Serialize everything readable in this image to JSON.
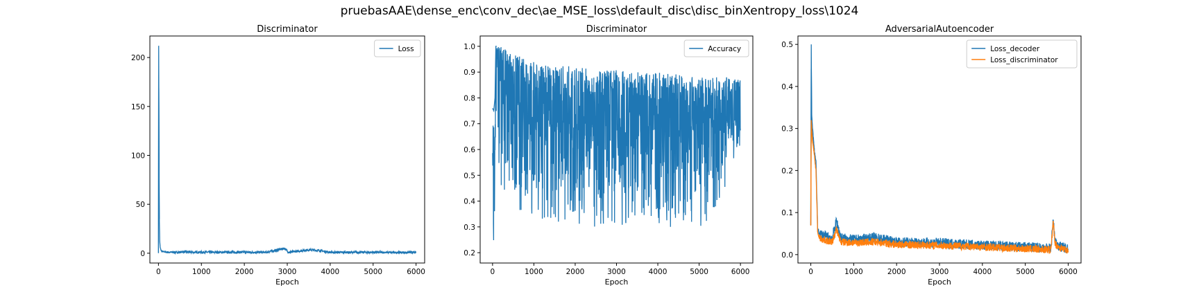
{
  "figure": {
    "suptitle": "pruebasAAE\\dense_enc\\conv_dec\\ae_MSE_loss\\default_disc\\disc_binXentropy_loss\\1024"
  },
  "colors": {
    "blue": "#1f77b4",
    "orange": "#ff7f0e"
  },
  "chart_data": [
    {
      "type": "line",
      "title": "Discriminator",
      "xlabel": "Epoch",
      "ylabel": "",
      "xlim": [
        -200,
        6200
      ],
      "ylim": [
        -10,
        222
      ],
      "xticks": [
        0,
        1000,
        2000,
        3000,
        4000,
        5000,
        6000
      ],
      "yticks": [
        0,
        50,
        100,
        150,
        200
      ],
      "legend_position": "top-right",
      "series": [
        {
          "name": "Loss",
          "color": "#1f77b4",
          "x": [
            0,
            5,
            10,
            15,
            20,
            30,
            40,
            60,
            80,
            120,
            200,
            400,
            600,
            800,
            1000,
            1500,
            2000,
            2500,
            2950,
            3000,
            3050,
            3500,
            3700,
            4000,
            4500,
            5000,
            5500,
            6000
          ],
          "y": [
            0.5,
            212,
            150,
            85,
            35,
            12,
            6,
            3,
            2,
            1.5,
            1,
            0.8,
            1.5,
            0.9,
            1,
            0.9,
            1,
            0.8,
            5,
            2,
            1,
            3.5,
            3,
            1,
            0.8,
            0.9,
            0.7,
            0.8
          ],
          "noise_amplitude": 1.2
        }
      ]
    },
    {
      "type": "line",
      "title": "Discriminator",
      "xlabel": "Epoch",
      "ylabel": "",
      "xlim": [
        -300,
        6300
      ],
      "ylim": [
        0.16,
        1.04
      ],
      "xticks": [
        0,
        1000,
        2000,
        3000,
        4000,
        5000,
        6000
      ],
      "yticks": [
        0.2,
        0.3,
        0.4,
        0.5,
        0.6,
        0.7,
        0.8,
        0.9,
        1.0
      ],
      "legend_position": "top-right",
      "series": [
        {
          "name": "Accuracy",
          "color": "#1f77b4",
          "x": [
            0,
            30,
            60,
            80,
            100,
            200,
            500,
            1000,
            1500,
            2000,
            2500,
            3000,
            3500,
            4000,
            4500,
            5000,
            5500,
            6000
          ],
          "y": [
            0.62,
            0.19,
            0.6,
            0.95,
            0.98,
            0.9,
            0.8,
            0.72,
            0.72,
            0.7,
            0.7,
            0.69,
            0.68,
            0.7,
            0.69,
            0.7,
            0.72,
            0.72
          ],
          "upper_envelope": [
            0.76,
            0.75,
            0.8,
            1.0,
            1.0,
            1.0,
            0.97,
            0.94,
            0.93,
            0.92,
            0.91,
            0.91,
            0.9,
            0.9,
            0.89,
            0.88,
            0.88,
            0.88
          ],
          "lower_envelope": [
            0.25,
            0.19,
            0.4,
            0.6,
            0.6,
            0.45,
            0.37,
            0.33,
            0.31,
            0.31,
            0.3,
            0.28,
            0.3,
            0.3,
            0.28,
            0.3,
            0.35,
            0.6
          ]
        }
      ]
    },
    {
      "type": "line",
      "title": "AdversarialAutoencoder",
      "xlabel": "Epoch",
      "ylabel": "",
      "xlim": [
        -300,
        6300
      ],
      "ylim": [
        -0.02,
        0.52
      ],
      "xticks": [
        0,
        1000,
        2000,
        3000,
        4000,
        5000,
        6000
      ],
      "yticks": [
        0.0,
        0.1,
        0.2,
        0.3,
        0.4,
        0.5
      ],
      "legend_position": "top-right",
      "series": [
        {
          "name": "Loss_decoder",
          "color": "#1f77b4",
          "x": [
            0,
            10,
            20,
            40,
            80,
            120,
            160,
            200,
            300,
            500,
            600,
            700,
            1000,
            1500,
            2000,
            3000,
            4000,
            5000,
            5600,
            5650,
            5700,
            5800,
            6000
          ],
          "y": [
            0.07,
            0.5,
            0.33,
            0.3,
            0.25,
            0.22,
            0.06,
            0.05,
            0.045,
            0.04,
            0.08,
            0.04,
            0.035,
            0.04,
            0.03,
            0.028,
            0.022,
            0.018,
            0.015,
            0.08,
            0.03,
            0.02,
            0.014
          ],
          "noise_amplitude": 0.012
        },
        {
          "name": "Loss_discriminator",
          "color": "#ff7f0e",
          "x": [
            0,
            10,
            20,
            40,
            80,
            120,
            160,
            200,
            300,
            500,
            600,
            700,
            1000,
            1500,
            2000,
            3000,
            4000,
            5000,
            5600,
            5650,
            5700,
            5800,
            6000
          ],
          "y": [
            0.07,
            0.32,
            0.3,
            0.27,
            0.24,
            0.2,
            0.05,
            0.04,
            0.035,
            0.03,
            0.06,
            0.03,
            0.028,
            0.03,
            0.024,
            0.022,
            0.018,
            0.014,
            0.012,
            0.075,
            0.025,
            0.016,
            0.011
          ],
          "noise_amplitude": 0.009
        }
      ]
    }
  ]
}
